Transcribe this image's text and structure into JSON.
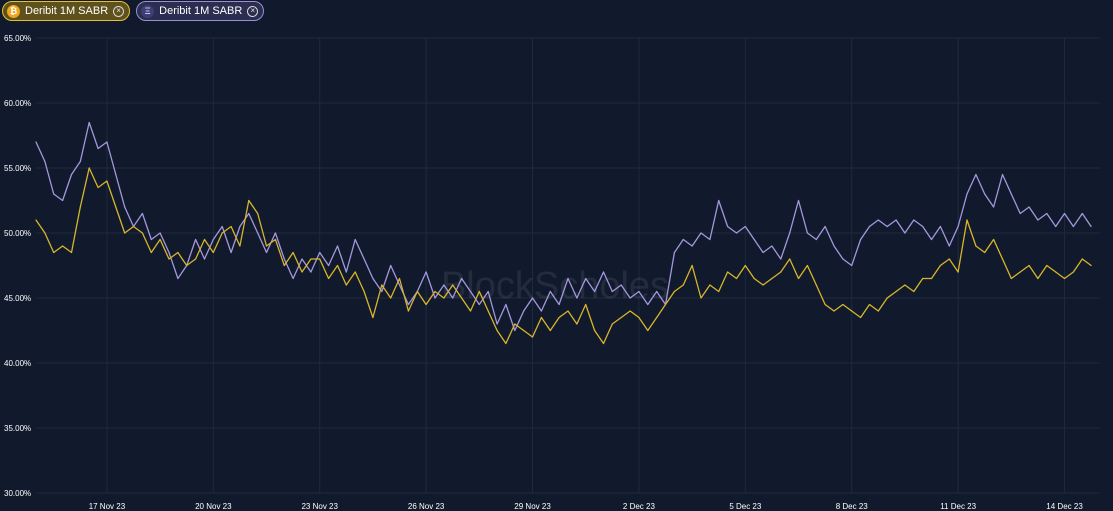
{
  "legend": [
    {
      "label": "Deribit 1M SABR",
      "coin_icon": "bitcoin-icon",
      "close_icon": "close-icon",
      "color": "#d8b52a",
      "chip_border": "#e4c133"
    },
    {
      "label": "Deribit 1M SABR",
      "coin_icon": "ethereum-icon",
      "close_icon": "close-icon",
      "color": "#a597dc",
      "chip_border": "#9b8fd0"
    }
  ],
  "watermark": "BlockScholes",
  "colors": {
    "background": "#101a2c",
    "grid": "#1f2a3d",
    "tick_text": "#ffffff",
    "btc_line": "#d8b52a",
    "eth_line": "#a597dc"
  },
  "chart_data": {
    "type": "line",
    "title": "",
    "xlabel": "",
    "ylabel": "",
    "ylim": [
      30,
      65
    ],
    "y_ticks": [
      30,
      35,
      40,
      45,
      50,
      55,
      60,
      65
    ],
    "y_tick_labels": [
      "30.00%",
      "35.00%",
      "40.00%",
      "45.00%",
      "50.00%",
      "55.00%",
      "60.00%",
      "65.00%"
    ],
    "x_range": [
      "2023-11-15",
      "2023-12-15"
    ],
    "x_ticks": [
      "2023-11-17",
      "2023-11-20",
      "2023-11-23",
      "2023-11-26",
      "2023-11-29",
      "2023-12-02",
      "2023-12-05",
      "2023-12-08",
      "2023-12-11",
      "2023-12-14"
    ],
    "x_tick_labels": [
      "17 Nov 23",
      "20 Nov 23",
      "23 Nov 23",
      "26 Nov 23",
      "29 Nov 23",
      "2 Dec 23",
      "5 Dec 23",
      "8 Dec 23",
      "11 Dec 23",
      "14 Dec 23"
    ],
    "grid": true,
    "legend_position": "top-left",
    "series": [
      {
        "name": "Deribit 1M SABR",
        "color": "#a597dc",
        "points": [
          [
            "2023-11-15 00:00",
            57.0
          ],
          [
            "2023-11-15 06:00",
            55.5
          ],
          [
            "2023-11-15 12:00",
            53.0
          ],
          [
            "2023-11-15 18:00",
            52.5
          ],
          [
            "2023-11-16 00:00",
            54.5
          ],
          [
            "2023-11-16 06:00",
            55.5
          ],
          [
            "2023-11-16 12:00",
            58.5
          ],
          [
            "2023-11-16 18:00",
            56.5
          ],
          [
            "2023-11-17 00:00",
            57.0
          ],
          [
            "2023-11-17 06:00",
            54.5
          ],
          [
            "2023-11-17 12:00",
            52.0
          ],
          [
            "2023-11-17 18:00",
            50.5
          ],
          [
            "2023-11-18 00:00",
            51.5
          ],
          [
            "2023-11-18 06:00",
            49.5
          ],
          [
            "2023-11-18 12:00",
            50.0
          ],
          [
            "2023-11-18 18:00",
            48.5
          ],
          [
            "2023-11-19 00:00",
            46.5
          ],
          [
            "2023-11-19 06:00",
            47.5
          ],
          [
            "2023-11-19 12:00",
            49.5
          ],
          [
            "2023-11-19 18:00",
            48.0
          ],
          [
            "2023-11-20 00:00",
            49.5
          ],
          [
            "2023-11-20 06:00",
            50.5
          ],
          [
            "2023-11-20 12:00",
            48.5
          ],
          [
            "2023-11-20 18:00",
            50.5
          ],
          [
            "2023-11-21 00:00",
            51.5
          ],
          [
            "2023-11-21 06:00",
            50.0
          ],
          [
            "2023-11-21 12:00",
            48.5
          ],
          [
            "2023-11-21 18:00",
            50.0
          ],
          [
            "2023-11-22 00:00",
            48.0
          ],
          [
            "2023-11-22 06:00",
            46.5
          ],
          [
            "2023-11-22 12:00",
            48.0
          ],
          [
            "2023-11-22 18:00",
            47.0
          ],
          [
            "2023-11-23 00:00",
            48.5
          ],
          [
            "2023-11-23 06:00",
            47.5
          ],
          [
            "2023-11-23 12:00",
            49.0
          ],
          [
            "2023-11-23 18:00",
            47.0
          ],
          [
            "2023-11-24 00:00",
            49.5
          ],
          [
            "2023-11-24 06:00",
            48.0
          ],
          [
            "2023-11-24 12:00",
            46.5
          ],
          [
            "2023-11-24 18:00",
            45.5
          ],
          [
            "2023-11-25 00:00",
            47.5
          ],
          [
            "2023-11-25 06:00",
            46.0
          ],
          [
            "2023-11-25 12:00",
            44.5
          ],
          [
            "2023-11-25 18:00",
            45.5
          ],
          [
            "2023-11-26 00:00",
            47.0
          ],
          [
            "2023-11-26 06:00",
            45.0
          ],
          [
            "2023-11-26 12:00",
            46.0
          ],
          [
            "2023-11-26 18:00",
            45.0
          ],
          [
            "2023-11-27 00:00",
            46.5
          ],
          [
            "2023-11-27 06:00",
            45.5
          ],
          [
            "2023-11-27 12:00",
            44.5
          ],
          [
            "2023-11-27 18:00",
            45.5
          ],
          [
            "2023-11-28 00:00",
            43.0
          ],
          [
            "2023-11-28 06:00",
            44.5
          ],
          [
            "2023-11-28 12:00",
            42.5
          ],
          [
            "2023-11-28 18:00",
            44.0
          ],
          [
            "2023-11-29 00:00",
            45.0
          ],
          [
            "2023-11-29 06:00",
            44.0
          ],
          [
            "2023-11-29 12:00",
            45.5
          ],
          [
            "2023-11-29 18:00",
            44.5
          ],
          [
            "2023-11-30 00:00",
            46.5
          ],
          [
            "2023-11-30 06:00",
            45.0
          ],
          [
            "2023-11-30 12:00",
            46.5
          ],
          [
            "2023-11-30 18:00",
            45.5
          ],
          [
            "2023-12-01 00:00",
            47.0
          ],
          [
            "2023-12-01 06:00",
            45.5
          ],
          [
            "2023-12-01 12:00",
            46.0
          ],
          [
            "2023-12-01 18:00",
            45.0
          ],
          [
            "2023-12-02 00:00",
            45.5
          ],
          [
            "2023-12-02 06:00",
            44.5
          ],
          [
            "2023-12-02 12:00",
            45.5
          ],
          [
            "2023-12-02 18:00",
            44.5
          ],
          [
            "2023-12-03 00:00",
            48.5
          ],
          [
            "2023-12-03 06:00",
            49.5
          ],
          [
            "2023-12-03 12:00",
            49.0
          ],
          [
            "2023-12-03 18:00",
            50.0
          ],
          [
            "2023-12-04 00:00",
            49.5
          ],
          [
            "2023-12-04 06:00",
            52.5
          ],
          [
            "2023-12-04 12:00",
            50.5
          ],
          [
            "2023-12-04 18:00",
            50.0
          ],
          [
            "2023-12-05 00:00",
            50.5
          ],
          [
            "2023-12-05 06:00",
            49.5
          ],
          [
            "2023-12-05 12:00",
            48.5
          ],
          [
            "2023-12-05 18:00",
            49.0
          ],
          [
            "2023-12-06 00:00",
            48.0
          ],
          [
            "2023-12-06 06:00",
            50.0
          ],
          [
            "2023-12-06 12:00",
            52.5
          ],
          [
            "2023-12-06 18:00",
            50.0
          ],
          [
            "2023-12-07 00:00",
            49.5
          ],
          [
            "2023-12-07 06:00",
            50.5
          ],
          [
            "2023-12-07 12:00",
            49.0
          ],
          [
            "2023-12-07 18:00",
            48.0
          ],
          [
            "2023-12-08 00:00",
            47.5
          ],
          [
            "2023-12-08 06:00",
            49.5
          ],
          [
            "2023-12-08 12:00",
            50.5
          ],
          [
            "2023-12-08 18:00",
            51.0
          ],
          [
            "2023-12-09 00:00",
            50.5
          ],
          [
            "2023-12-09 06:00",
            51.0
          ],
          [
            "2023-12-09 12:00",
            50.0
          ],
          [
            "2023-12-09 18:00",
            51.0
          ],
          [
            "2023-12-10 00:00",
            50.5
          ],
          [
            "2023-12-10 06:00",
            49.5
          ],
          [
            "2023-12-10 12:00",
            50.5
          ],
          [
            "2023-12-10 18:00",
            49.0
          ],
          [
            "2023-12-11 00:00",
            50.5
          ],
          [
            "2023-12-11 06:00",
            53.0
          ],
          [
            "2023-12-11 12:00",
            54.5
          ],
          [
            "2023-12-11 18:00",
            53.0
          ],
          [
            "2023-12-12 00:00",
            52.0
          ],
          [
            "2023-12-12 06:00",
            54.5
          ],
          [
            "2023-12-12 12:00",
            53.0
          ],
          [
            "2023-12-12 18:00",
            51.5
          ],
          [
            "2023-12-13 00:00",
            52.0
          ],
          [
            "2023-12-13 06:00",
            51.0
          ],
          [
            "2023-12-13 12:00",
            51.5
          ],
          [
            "2023-12-13 18:00",
            50.5
          ],
          [
            "2023-12-14 00:00",
            51.5
          ],
          [
            "2023-12-14 06:00",
            50.5
          ],
          [
            "2023-12-14 12:00",
            51.5
          ],
          [
            "2023-12-14 18:00",
            50.5
          ]
        ]
      },
      {
        "name": "Deribit 1M SABR",
        "color": "#d8b52a",
        "points": [
          [
            "2023-11-15 00:00",
            51.0
          ],
          [
            "2023-11-15 06:00",
            50.0
          ],
          [
            "2023-11-15 12:00",
            48.5
          ],
          [
            "2023-11-15 18:00",
            49.0
          ],
          [
            "2023-11-16 00:00",
            48.5
          ],
          [
            "2023-11-16 06:00",
            52.0
          ],
          [
            "2023-11-16 12:00",
            55.0
          ],
          [
            "2023-11-16 18:00",
            53.5
          ],
          [
            "2023-11-17 00:00",
            54.0
          ],
          [
            "2023-11-17 06:00",
            52.0
          ],
          [
            "2023-11-17 12:00",
            50.0
          ],
          [
            "2023-11-17 18:00",
            50.5
          ],
          [
            "2023-11-18 00:00",
            50.0
          ],
          [
            "2023-11-18 06:00",
            48.5
          ],
          [
            "2023-11-18 12:00",
            49.5
          ],
          [
            "2023-11-18 18:00",
            48.0
          ],
          [
            "2023-11-19 00:00",
            48.5
          ],
          [
            "2023-11-19 06:00",
            47.5
          ],
          [
            "2023-11-19 12:00",
            48.0
          ],
          [
            "2023-11-19 18:00",
            49.5
          ],
          [
            "2023-11-20 00:00",
            48.5
          ],
          [
            "2023-11-20 06:00",
            50.0
          ],
          [
            "2023-11-20 12:00",
            50.5
          ],
          [
            "2023-11-20 18:00",
            49.0
          ],
          [
            "2023-11-21 00:00",
            52.5
          ],
          [
            "2023-11-21 06:00",
            51.5
          ],
          [
            "2023-11-21 12:00",
            49.0
          ],
          [
            "2023-11-21 18:00",
            49.5
          ],
          [
            "2023-11-22 00:00",
            47.5
          ],
          [
            "2023-11-22 06:00",
            48.5
          ],
          [
            "2023-11-22 12:00",
            47.0
          ],
          [
            "2023-11-22 18:00",
            48.0
          ],
          [
            "2023-11-23 00:00",
            48.0
          ],
          [
            "2023-11-23 06:00",
            46.5
          ],
          [
            "2023-11-23 12:00",
            47.5
          ],
          [
            "2023-11-23 18:00",
            46.0
          ],
          [
            "2023-11-24 00:00",
            47.0
          ],
          [
            "2023-11-24 06:00",
            45.5
          ],
          [
            "2023-11-24 12:00",
            43.5
          ],
          [
            "2023-11-24 18:00",
            46.0
          ],
          [
            "2023-11-25 00:00",
            45.0
          ],
          [
            "2023-11-25 06:00",
            46.5
          ],
          [
            "2023-11-25 12:00",
            44.0
          ],
          [
            "2023-11-25 18:00",
            45.5
          ],
          [
            "2023-11-26 00:00",
            44.5
          ],
          [
            "2023-11-26 06:00",
            45.5
          ],
          [
            "2023-11-26 12:00",
            45.0
          ],
          [
            "2023-11-26 18:00",
            46.0
          ],
          [
            "2023-11-27 00:00",
            45.0
          ],
          [
            "2023-11-27 06:00",
            44.0
          ],
          [
            "2023-11-27 12:00",
            45.5
          ],
          [
            "2023-11-27 18:00",
            44.0
          ],
          [
            "2023-11-28 00:00",
            42.5
          ],
          [
            "2023-11-28 06:00",
            41.5
          ],
          [
            "2023-11-28 12:00",
            43.0
          ],
          [
            "2023-11-28 18:00",
            42.5
          ],
          [
            "2023-11-29 00:00",
            42.0
          ],
          [
            "2023-11-29 06:00",
            43.5
          ],
          [
            "2023-11-29 12:00",
            42.5
          ],
          [
            "2023-11-29 18:00",
            43.5
          ],
          [
            "2023-11-30 00:00",
            44.0
          ],
          [
            "2023-11-30 06:00",
            43.0
          ],
          [
            "2023-11-30 12:00",
            44.5
          ],
          [
            "2023-11-30 18:00",
            42.5
          ],
          [
            "2023-12-01 00:00",
            41.5
          ],
          [
            "2023-12-01 06:00",
            43.0
          ],
          [
            "2023-12-01 12:00",
            43.5
          ],
          [
            "2023-12-01 18:00",
            44.0
          ],
          [
            "2023-12-02 00:00",
            43.5
          ],
          [
            "2023-12-02 06:00",
            42.5
          ],
          [
            "2023-12-02 12:00",
            43.5
          ],
          [
            "2023-12-02 18:00",
            44.5
          ],
          [
            "2023-12-03 00:00",
            45.5
          ],
          [
            "2023-12-03 06:00",
            46.0
          ],
          [
            "2023-12-03 12:00",
            47.5
          ],
          [
            "2023-12-03 18:00",
            45.0
          ],
          [
            "2023-12-04 00:00",
            46.0
          ],
          [
            "2023-12-04 06:00",
            45.5
          ],
          [
            "2023-12-04 12:00",
            47.0
          ],
          [
            "2023-12-04 18:00",
            46.5
          ],
          [
            "2023-12-05 00:00",
            47.5
          ],
          [
            "2023-12-05 06:00",
            46.5
          ],
          [
            "2023-12-05 12:00",
            46.0
          ],
          [
            "2023-12-05 18:00",
            46.5
          ],
          [
            "2023-12-06 00:00",
            47.0
          ],
          [
            "2023-12-06 06:00",
            48.0
          ],
          [
            "2023-12-06 12:00",
            46.5
          ],
          [
            "2023-12-06 18:00",
            47.5
          ],
          [
            "2023-12-07 00:00",
            46.0
          ],
          [
            "2023-12-07 06:00",
            44.5
          ],
          [
            "2023-12-07 12:00",
            44.0
          ],
          [
            "2023-12-07 18:00",
            44.5
          ],
          [
            "2023-12-08 00:00",
            44.0
          ],
          [
            "2023-12-08 06:00",
            43.5
          ],
          [
            "2023-12-08 12:00",
            44.5
          ],
          [
            "2023-12-08 18:00",
            44.0
          ],
          [
            "2023-12-09 00:00",
            45.0
          ],
          [
            "2023-12-09 06:00",
            45.5
          ],
          [
            "2023-12-09 12:00",
            46.0
          ],
          [
            "2023-12-09 18:00",
            45.5
          ],
          [
            "2023-12-10 00:00",
            46.5
          ],
          [
            "2023-12-10 06:00",
            46.5
          ],
          [
            "2023-12-10 12:00",
            47.5
          ],
          [
            "2023-12-10 18:00",
            48.0
          ],
          [
            "2023-12-11 00:00",
            47.0
          ],
          [
            "2023-12-11 06:00",
            51.0
          ],
          [
            "2023-12-11 12:00",
            49.0
          ],
          [
            "2023-12-11 18:00",
            48.5
          ],
          [
            "2023-12-12 00:00",
            49.5
          ],
          [
            "2023-12-12 06:00",
            48.0
          ],
          [
            "2023-12-12 12:00",
            46.5
          ],
          [
            "2023-12-12 18:00",
            47.0
          ],
          [
            "2023-12-13 00:00",
            47.5
          ],
          [
            "2023-12-13 06:00",
            46.5
          ],
          [
            "2023-12-13 12:00",
            47.5
          ],
          [
            "2023-12-13 18:00",
            47.0
          ],
          [
            "2023-12-14 00:00",
            46.5
          ],
          [
            "2023-12-14 06:00",
            47.0
          ],
          [
            "2023-12-14 12:00",
            48.0
          ],
          [
            "2023-12-14 18:00",
            47.5
          ]
        ]
      }
    ]
  }
}
